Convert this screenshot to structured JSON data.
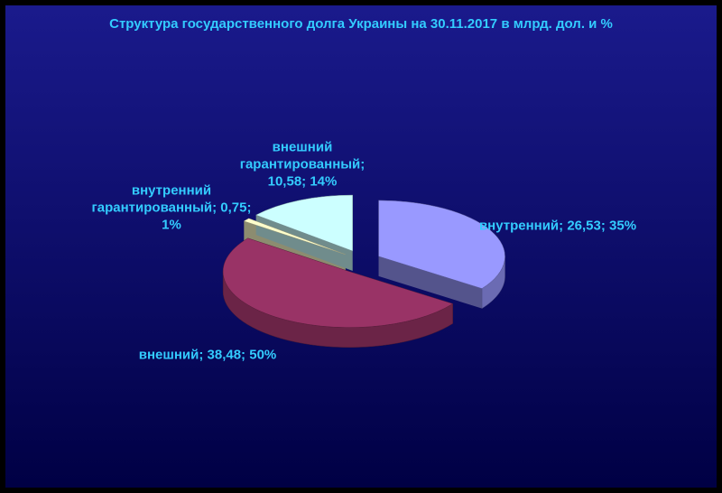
{
  "chart_data": {
    "type": "pie",
    "title": "Структура государственного долга Украины на 30.11.2017 в млрд. дол. и %",
    "labels": [
      "внутренний; 26,53; 35%",
      "внешний; 38,48; 50%",
      "внутренний гарантированный; 0,75; 1%",
      "внешний гарантированный; 10,58; 14%"
    ],
    "values": [
      26.53,
      38.48,
      0.75,
      10.58
    ],
    "colors": [
      "#9999ff",
      "#993366",
      "#ffffcc",
      "#ccffff"
    ]
  }
}
